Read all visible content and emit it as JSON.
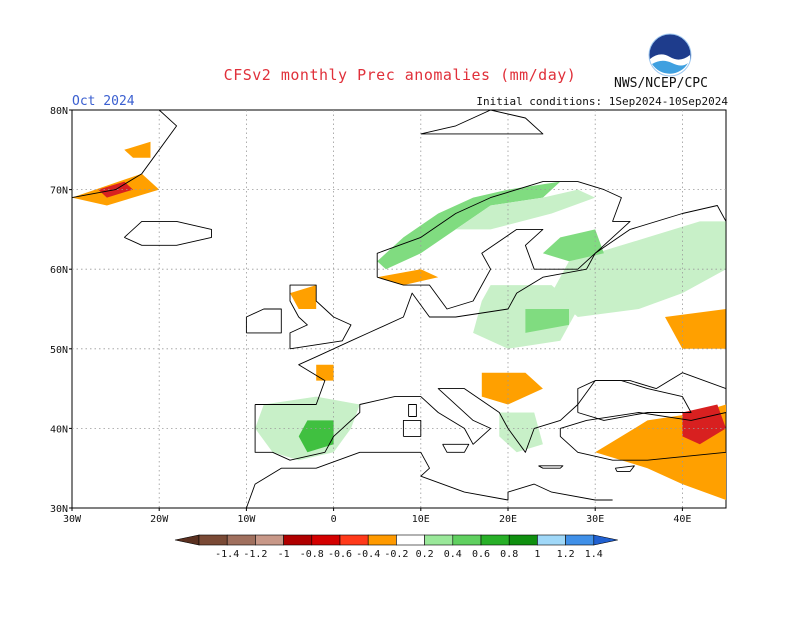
{
  "title": "CFSv2 monthly Prec anomalies (mm/day)",
  "month": "Oct 2024",
  "initial_conditions": "Initial conditions: 1Sep2024-10Sep2024",
  "source": "NWS/NCEP/CPC",
  "logo_text": "NOAA",
  "map": {
    "lon_range": [
      -30,
      45
    ],
    "lat_range": [
      30,
      80
    ],
    "gridlines": true,
    "lat_labels": [
      "30N",
      "40N",
      "50N",
      "60N",
      "70N",
      "80N"
    ],
    "lon_labels": [
      "30W",
      "20W",
      "10W",
      "0",
      "10E",
      "20E",
      "30E",
      "40E"
    ]
  },
  "colorbar": {
    "labels": [
      "-1.4",
      "-1.2",
      "-1",
      "-0.8",
      "-0.6",
      "-0.4",
      "-0.2",
      "0.2",
      "0.4",
      "0.6",
      "0.8",
      "1",
      "1.2",
      "1.4"
    ],
    "colors": [
      "#7a4a36",
      "#a0705e",
      "#c89888",
      "#b00000",
      "#d40000",
      "#ff3a1a",
      "#ff9a00",
      "#ffffff",
      "#9ae89a",
      "#60d060",
      "#28b028",
      "#109010",
      "#a0d8f8",
      "#4090e8"
    ],
    "low_end_color": "#5a3020",
    "high_end_color": "#2060d0"
  },
  "anomaly_regions": [
    {
      "level": 0.2,
      "color": "#c8f0c8",
      "region": "western Russia",
      "points": [
        [
          30,
          62
        ],
        [
          36,
          64
        ],
        [
          42,
          66
        ],
        [
          45,
          66
        ],
        [
          45,
          60
        ],
        [
          40,
          57
        ],
        [
          35,
          55
        ],
        [
          28,
          54
        ],
        [
          25,
          57
        ],
        [
          27,
          61
        ]
      ]
    },
    {
      "level": 0.4,
      "color": "#80dc80",
      "region": "northern Finland",
      "points": [
        [
          26,
          64
        ],
        [
          30,
          65
        ],
        [
          31,
          62
        ],
        [
          27,
          61
        ],
        [
          24,
          62
        ]
      ]
    },
    {
      "level": 0.2,
      "color": "#c8f0c8",
      "region": "Baltic / Poland",
      "points": [
        [
          18,
          58
        ],
        [
          25,
          58
        ],
        [
          28,
          55
        ],
        [
          26,
          51
        ],
        [
          20,
          50
        ],
        [
          16,
          52
        ],
        [
          17,
          56
        ]
      ]
    },
    {
      "level": 0.4,
      "color": "#80dc80",
      "region": "Belarus",
      "points": [
        [
          22,
          55
        ],
        [
          27,
          55
        ],
        [
          27,
          53
        ],
        [
          22,
          52
        ]
      ]
    },
    {
      "level": 0.4,
      "color": "#80dc80",
      "region": "Norwegian coast",
      "points": [
        [
          5,
          61
        ],
        [
          8,
          64
        ],
        [
          12,
          67
        ],
        [
          16,
          69
        ],
        [
          20,
          70
        ],
        [
          26,
          71
        ],
        [
          24,
          69
        ],
        [
          18,
          68
        ],
        [
          14,
          65
        ],
        [
          10,
          62
        ],
        [
          6,
          60
        ]
      ]
    },
    {
      "level": 0.2,
      "color": "#c8f0c8",
      "region": "northern Scandinavia",
      "points": [
        [
          14,
          65
        ],
        [
          18,
          68
        ],
        [
          24,
          69
        ],
        [
          28,
          70
        ],
        [
          30,
          69
        ],
        [
          25,
          67
        ],
        [
          18,
          65
        ]
      ]
    },
    {
      "level": 0.2,
      "color": "#c8f0c8",
      "region": "Iberia",
      "points": [
        [
          -8,
          43
        ],
        [
          -2,
          44
        ],
        [
          3,
          43
        ],
        [
          2,
          40
        ],
        [
          0,
          37
        ],
        [
          -4,
          36
        ],
        [
          -7,
          37
        ],
        [
          -9,
          40
        ]
      ]
    },
    {
      "level": 0.6,
      "color": "#40c040",
      "region": "Spain",
      "points": [
        [
          -3,
          41
        ],
        [
          0,
          41
        ],
        [
          0,
          38
        ],
        [
          -3,
          37
        ],
        [
          -4,
          39
        ]
      ]
    },
    {
      "level": 0.2,
      "color": "#c8f0c8",
      "region": "Balkans / Greece",
      "points": [
        [
          19,
          42
        ],
        [
          23,
          42
        ],
        [
          24,
          38
        ],
        [
          21,
          37
        ],
        [
          19,
          39
        ]
      ]
    },
    {
      "level": -0.2,
      "color": "#ffa000",
      "region": "Turkey east / Caucasus",
      "points": [
        [
          36,
          41
        ],
        [
          42,
          42
        ],
        [
          45,
          43
        ],
        [
          45,
          31
        ],
        [
          40,
          33
        ],
        [
          36,
          35
        ],
        [
          33,
          36
        ],
        [
          30,
          37
        ],
        [
          33,
          39
        ]
      ]
    },
    {
      "level": -0.6,
      "color": "#d82020",
      "region": "eastern Turkey",
      "points": [
        [
          40,
          42
        ],
        [
          44,
          43
        ],
        [
          45,
          40
        ],
        [
          42,
          38
        ],
        [
          40,
          39
        ]
      ]
    },
    {
      "level": -0.2,
      "color": "#ffa000",
      "region": "southern Russia",
      "points": [
        [
          38,
          54
        ],
        [
          45,
          55
        ],
        [
          45,
          50
        ],
        [
          40,
          50
        ]
      ]
    },
    {
      "level": -0.2,
      "color": "#ffa000",
      "region": "Greenland tip",
      "points": [
        [
          -30,
          69
        ],
        [
          -22,
          72
        ],
        [
          -20,
          70
        ],
        [
          -26,
          68
        ]
      ]
    },
    {
      "level": -0.6,
      "color": "#d82020",
      "region": "Greenland coast",
      "points": [
        [
          -27,
          70
        ],
        [
          -24,
          71
        ],
        [
          -23,
          70
        ],
        [
          -26,
          69
        ]
      ]
    },
    {
      "level": -0.2,
      "color": "#ffa000",
      "region": "Svalbard",
      "points": [
        [
          -24,
          75
        ],
        [
          -21,
          76
        ],
        [
          -21,
          74
        ],
        [
          -23,
          74
        ]
      ]
    },
    {
      "level": -0.2,
      "color": "#ffa000",
      "region": "Hungary / Balkans",
      "points": [
        [
          17,
          47
        ],
        [
          22,
          47
        ],
        [
          24,
          45
        ],
        [
          20,
          43
        ],
        [
          17,
          44
        ]
      ]
    },
    {
      "level": -0.2,
      "color": "#ffa000",
      "region": "southern Norway",
      "points": [
        [
          5,
          59
        ],
        [
          10,
          60
        ],
        [
          12,
          59
        ],
        [
          8,
          58
        ]
      ]
    },
    {
      "level": -0.2,
      "color": "#ffa000",
      "region": "Scotland",
      "points": [
        [
          -5,
          57
        ],
        [
          -2,
          58
        ],
        [
          -2,
          55
        ],
        [
          -4,
          55
        ]
      ]
    },
    {
      "level": -0.2,
      "color": "#ffa000",
      "region": "France coast",
      "points": [
        [
          -2,
          48
        ],
        [
          0,
          48
        ],
        [
          0,
          46
        ],
        [
          -2,
          46
        ]
      ]
    }
  ],
  "coastlines": [
    {
      "name": "Scandinavia",
      "points": [
        [
          5,
          59
        ],
        [
          5,
          62
        ],
        [
          10,
          64
        ],
        [
          14,
          67
        ],
        [
          18,
          69
        ],
        [
          24,
          71
        ],
        [
          28,
          71
        ],
        [
          31,
          70
        ],
        [
          33,
          69
        ],
        [
          32,
          66
        ],
        [
          34,
          66
        ],
        [
          30,
          62
        ],
        [
          28,
          60
        ],
        [
          23,
          60
        ],
        [
          22,
          63
        ],
        [
          24,
          65
        ],
        [
          21,
          65
        ],
        [
          17,
          62
        ],
        [
          18,
          60
        ],
        [
          16,
          56
        ],
        [
          13,
          55
        ],
        [
          11,
          58
        ],
        [
          8,
          58
        ],
        [
          5,
          59
        ]
      ]
    },
    {
      "name": "Continental Europe",
      "points": [
        [
          -9,
          43
        ],
        [
          -2,
          43
        ],
        [
          -1,
          46
        ],
        [
          -4,
          48
        ],
        [
          -2,
          49
        ],
        [
          2,
          51
        ],
        [
          4,
          52
        ],
        [
          8,
          54
        ],
        [
          9,
          57
        ],
        [
          11,
          54
        ],
        [
          14,
          54
        ],
        [
          20,
          55
        ],
        [
          21,
          57
        ],
        [
          24,
          59
        ],
        [
          29,
          60
        ],
        [
          30,
          62
        ],
        [
          34,
          65
        ],
        [
          40,
          67
        ],
        [
          44,
          68
        ],
        [
          45,
          66
        ],
        [
          45,
          45
        ],
        [
          40,
          47
        ],
        [
          37,
          45
        ],
        [
          34,
          46
        ],
        [
          30,
          46
        ],
        [
          28,
          43
        ],
        [
          26,
          41
        ],
        [
          23,
          40
        ],
        [
          22,
          37
        ],
        [
          20,
          40
        ],
        [
          19,
          42
        ],
        [
          15,
          45
        ],
        [
          12,
          45
        ],
        [
          16,
          41
        ],
        [
          18,
          40
        ],
        [
          16,
          38
        ],
        [
          15,
          40
        ],
        [
          12,
          42
        ],
        [
          10,
          44
        ],
        [
          7,
          44
        ],
        [
          3,
          43
        ],
        [
          3,
          42
        ],
        [
          0,
          39
        ],
        [
          -1,
          37
        ],
        [
          -5,
          36
        ],
        [
          -7,
          37
        ],
        [
          -9,
          37
        ],
        [
          -9,
          43
        ]
      ]
    },
    {
      "name": "Great Britain",
      "points": [
        [
          -5,
          50
        ],
        [
          1,
          51
        ],
        [
          2,
          53
        ],
        [
          0,
          54
        ],
        [
          -2,
          56
        ],
        [
          -2,
          58
        ],
        [
          -5,
          58
        ],
        [
          -5,
          56
        ],
        [
          -4,
          54
        ],
        [
          -3,
          53
        ],
        [
          -5,
          52
        ],
        [
          -5,
          50
        ]
      ]
    },
    {
      "name": "Ireland",
      "points": [
        [
          -10,
          52
        ],
        [
          -6,
          52
        ],
        [
          -6,
          55
        ],
        [
          -8,
          55
        ],
        [
          -10,
          54
        ],
        [
          -10,
          52
        ]
      ]
    },
    {
      "name": "Iceland",
      "points": [
        [
          -24,
          64
        ],
        [
          -22,
          66
        ],
        [
          -18,
          66
        ],
        [
          -14,
          65
        ],
        [
          -14,
          64
        ],
        [
          -18,
          63
        ],
        [
          -22,
          63
        ],
        [
          -24,
          64
        ]
      ]
    },
    {
      "name": "North Africa",
      "points": [
        [
          -10,
          30
        ],
        [
          -9,
          33
        ],
        [
          -6,
          35
        ],
        [
          -2,
          35
        ],
        [
          3,
          37
        ],
        [
          10,
          37
        ],
        [
          11,
          35
        ],
        [
          10,
          34
        ],
        [
          15,
          32
        ],
        [
          20,
          31
        ],
        [
          20,
          32
        ],
        [
          23,
          33
        ],
        [
          25,
          32
        ],
        [
          30,
          31
        ],
        [
          32,
          31
        ]
      ]
    },
    {
      "name": "Anatolia",
      "points": [
        [
          26,
          40
        ],
        [
          29,
          41
        ],
        [
          35,
          42
        ],
        [
          41,
          41
        ],
        [
          45,
          42
        ],
        [
          45,
          37
        ],
        [
          36,
          36
        ],
        [
          32,
          36
        ],
        [
          28,
          37
        ],
        [
          26,
          39
        ],
        [
          26,
          40
        ]
      ]
    },
    {
      "name": "Black Sea",
      "points": [
        [
          28,
          42
        ],
        [
          28,
          45
        ],
        [
          30,
          46
        ],
        [
          33,
          46
        ],
        [
          36,
          45
        ],
        [
          40,
          44
        ],
        [
          41,
          42
        ],
        [
          36,
          42
        ],
        [
          31,
          41
        ],
        [
          28,
          42
        ]
      ]
    },
    {
      "name": "Greenland",
      "points": [
        [
          -30,
          69
        ],
        [
          -25,
          70
        ],
        [
          -22,
          72
        ],
        [
          -20,
          75
        ],
        [
          -18,
          78
        ],
        [
          -20,
          80
        ]
      ]
    },
    {
      "name": "Svalbard",
      "points": [
        [
          10,
          77
        ],
        [
          14,
          78
        ],
        [
          18,
          80
        ],
        [
          22,
          79
        ],
        [
          24,
          77
        ],
        [
          18,
          77
        ],
        [
          14,
          77
        ],
        [
          10,
          77
        ]
      ]
    },
    {
      "name": "Sardinia",
      "points": [
        [
          8,
          39
        ],
        [
          10,
          39
        ],
        [
          10,
          41
        ],
        [
          8,
          41
        ],
        [
          8,
          39
        ]
      ]
    },
    {
      "name": "Corsica",
      "points": [
        [
          8.6,
          41.5
        ],
        [
          9.5,
          41.5
        ],
        [
          9.5,
          43
        ],
        [
          8.6,
          43
        ],
        [
          8.6,
          41.5
        ]
      ]
    },
    {
      "name": "Sicily",
      "points": [
        [
          12.5,
          38
        ],
        [
          15.5,
          38
        ],
        [
          15,
          37
        ],
        [
          13,
          37
        ],
        [
          12.5,
          38
        ]
      ]
    },
    {
      "name": "Crete",
      "points": [
        [
          23.5,
          35.3
        ],
        [
          26.3,
          35.3
        ],
        [
          26,
          35
        ],
        [
          24,
          35
        ],
        [
          23.5,
          35.3
        ]
      ]
    },
    {
      "name": "Cyprus",
      "points": [
        [
          32.3,
          35
        ],
        [
          34.5,
          35.3
        ],
        [
          34,
          34.6
        ],
        [
          32.5,
          34.6
        ],
        [
          32.3,
          35
        ]
      ]
    },
    {
      "name": "Caspian Sea",
      "points": [
        [
          47,
          45
        ],
        [
          49,
          46
        ],
        [
          51,
          45
        ],
        [
          50,
          42
        ],
        [
          49,
          40
        ],
        [
          48,
          38
        ],
        [
          49,
          37
        ],
        [
          52,
          37
        ],
        [
          53,
          39
        ],
        [
          53,
          41
        ],
        [
          52,
          42
        ],
        [
          51,
          44
        ],
        [
          53,
          45
        ],
        [
          52,
          47
        ],
        [
          49,
          47
        ],
        [
          47,
          45
        ]
      ]
    }
  ]
}
